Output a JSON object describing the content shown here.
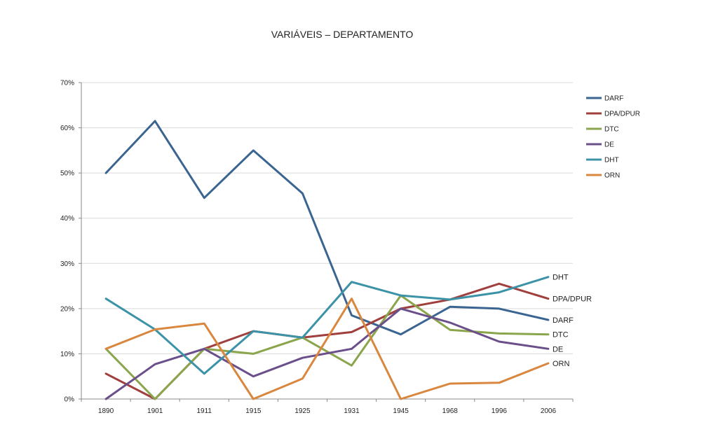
{
  "chart_data": {
    "type": "line",
    "title": "VARIÁVEIS – DEPARTAMENTO",
    "xlabel": "",
    "ylabel": "",
    "categories": [
      "1890",
      "1901",
      "1911",
      "1915",
      "1925",
      "1931",
      "1945",
      "1968",
      "1996",
      "2006"
    ],
    "ylim": [
      0,
      70
    ],
    "yticks": [
      0,
      10,
      20,
      30,
      40,
      50,
      60,
      70
    ],
    "ytick_suffix": "%",
    "grid": true,
    "legend": "right",
    "series": [
      {
        "name": "DARF",
        "color": "#3b6591",
        "values": [
          50,
          61.5,
          44.5,
          55,
          45.5,
          18.5,
          14.3,
          20.4,
          20,
          17.5
        ]
      },
      {
        "name": "DPA/DPUR",
        "color": "#a0403e",
        "values": [
          5.6,
          0,
          11.1,
          15,
          13.6,
          14.8,
          20,
          22,
          25.5,
          22.2
        ]
      },
      {
        "name": "DTC",
        "color": "#8aa54b",
        "values": [
          11.1,
          0,
          11.1,
          10,
          13.6,
          7.4,
          22.9,
          15.3,
          14.5,
          14.3
        ]
      },
      {
        "name": "DE",
        "color": "#6a4f8a",
        "values": [
          0,
          7.7,
          11.1,
          5,
          9.1,
          11.1,
          20,
          16.9,
          12.7,
          11.1
        ]
      },
      {
        "name": "DHT",
        "color": "#3c92a6",
        "values": [
          22.2,
          15.4,
          5.6,
          15,
          13.6,
          25.9,
          22.9,
          22,
          23.6,
          27
        ]
      },
      {
        "name": "ORN",
        "color": "#d9873f",
        "values": [
          11.1,
          15.4,
          16.7,
          0,
          4.5,
          22.2,
          0,
          3.4,
          3.6,
          7.9
        ]
      }
    ]
  }
}
